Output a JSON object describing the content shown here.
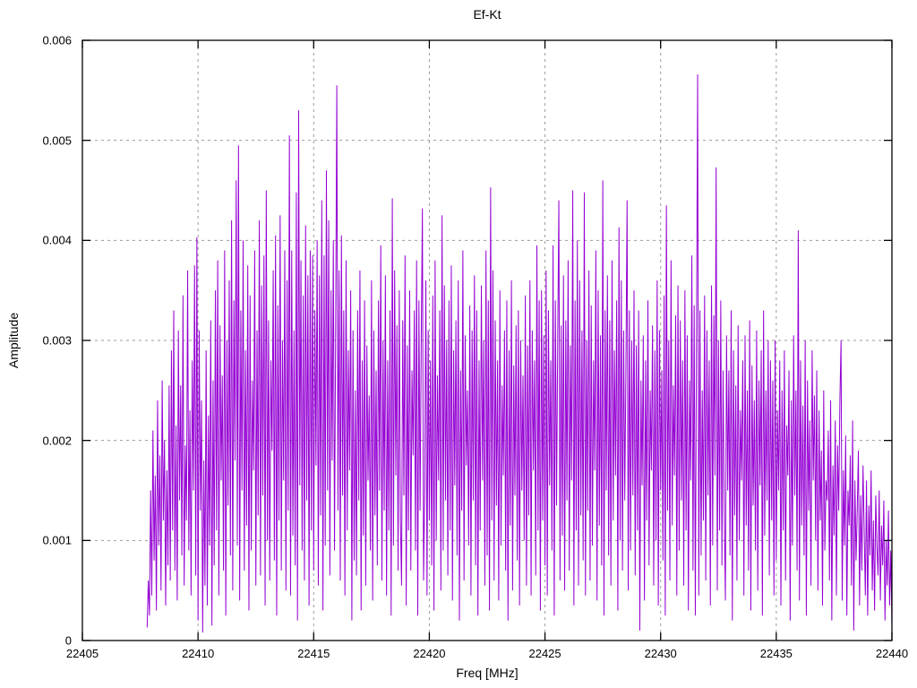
{
  "chart": {
    "title": "Ef-Kt",
    "xlabel": "Freq [MHz]",
    "ylabel": "Amplitude"
  },
  "chart_data": {
    "type": "line",
    "title": "Ef-Kt",
    "xlabel": "Freq [MHz]",
    "ylabel": "Amplitude",
    "xlim": [
      22405,
      22440
    ],
    "ylim": [
      0,
      0.006
    ],
    "xticks": [
      "22405",
      "22410",
      "22415",
      "22420",
      "22425",
      "22430",
      "22435",
      "22440"
    ],
    "xtick_values": [
      22405,
      22410,
      22415,
      22420,
      22425,
      22430,
      22435,
      22440
    ],
    "yticks": [
      "0",
      "0.001",
      "0.002",
      "0.003",
      "0.004",
      "0.005",
      "0.006"
    ],
    "ytick_values": [
      0,
      0.001,
      0.002,
      0.003,
      0.004,
      0.005,
      0.006
    ],
    "grid": true,
    "legend": false,
    "line_color": "#9400d3",
    "grid_color": "#9b9b9b",
    "axis_color": "#000000",
    "x_start": 22407.8,
    "x_step": 0.05,
    "amplitude_scale": 1e-05,
    "amplitudes": [
      13,
      60,
      25,
      150,
      45,
      210,
      80,
      165,
      30,
      240,
      95,
      185,
      50,
      260,
      120,
      200,
      35,
      170,
      75,
      255,
      60,
      290,
      110,
      330,
      70,
      215,
      40,
      310,
      140,
      255,
      85,
      345,
      55,
      195,
      120,
      370,
      90,
      230,
      45,
      280,
      150,
      375,
      65,
      403,
      20,
      310,
      130,
      240,
      8,
      180,
      55,
      290,
      35,
      225,
      95,
      320,
      15,
      260,
      75,
      350,
      110,
      380,
      45,
      315,
      160,
      265,
      70,
      390,
      25,
      300,
      135,
      360,
      85,
      420,
      50,
      340,
      180,
      460,
      95,
      495,
      40,
      330,
      150,
      400,
      70,
      290,
      115,
      375,
      30,
      345,
      90,
      260,
      170,
      390,
      55,
      310,
      125,
      420,
      65,
      355,
      145,
      385,
      35,
      450,
      100,
      320,
      60,
      280,
      190,
      370,
      80,
      405,
      25,
      335,
      120,
      425,
      70,
      300,
      160,
      390,
      50,
      360,
      130,
      505,
      45,
      390,
      105,
      310,
      75,
      448,
      20,
      530,
      155,
      380,
      90,
      345,
      60,
      415,
      140,
      365,
      35,
      390,
      110,
      385,
      70,
      330,
      175,
      400,
      55,
      365,
      125,
      440,
      30,
      385,
      95,
      470,
      150,
      420,
      65,
      350,
      180,
      400,
      90,
      315,
      555,
      130,
      370,
      60,
      405,
      145,
      330,
      45,
      380,
      110,
      290,
      170,
      350,
      20,
      310,
      80,
      250,
      65,
      330,
      140,
      370,
      30,
      280,
      105,
      340,
      55,
      295,
      160,
      245,
      90,
      360,
      40,
      310,
      125,
      270,
      75,
      340,
      150,
      395,
      60,
      300,
      130,
      365,
      45,
      280,
      110,
      330,
      25,
      442,
      95,
      370,
      165,
      315,
      70,
      350,
      120,
      55,
      320,
      145,
      385,
      35,
      295,
      110,
      350,
      70,
      270,
      185,
      330,
      90,
      380,
      25,
      340,
      130,
      300,
      432,
      60,
      150,
      360,
      45,
      310,
      120,
      280,
      75,
      345,
      30,
      380,
      100,
      265,
      160,
      330,
      50,
      425,
      90,
      355,
      140,
      300,
      65,
      340,
      110,
      375,
      40,
      290,
      155,
      320,
      85,
      360,
      20,
      270,
      130,
      390,
      60,
      305,
      175,
      250,
      95,
      335,
      45,
      310,
      140,
      365,
      75,
      330,
      25,
      280,
      110,
      355,
      160,
      300,
      55,
      390,
      85,
      340,
      30,
      453,
      120,
      370,
      60,
      320,
      135,
      280,
      40,
      350,
      95,
      255,
      165,
      310,
      70,
      340,
      20,
      290,
      115,
      360,
      50,
      275,
      145,
      315,
      80,
      330,
      35,
      300,
      150,
      265,
      100,
      345,
      55,
      295,
      125,
      360,
      45,
      310,
      170,
      280,
      65,
      395,
      110,
      340,
      30,
      350,
      120,
      305,
      75,
      370,
      45,
      330,
      155,
      280,
      90,
      395,
      25,
      340,
      135,
      300,
      440,
      60,
      315,
      105,
      365,
      50,
      320,
      140,
      380,
      70,
      295,
      160,
      450,
      35,
      340,
      110,
      400,
      55,
      360,
      125,
      310,
      80,
      448,
      45,
      300,
      130,
      370,
      60,
      335,
      95,
      280,
      170,
      390,
      40,
      350,
      115,
      305,
      75,
      460,
      25,
      330,
      150,
      365,
      85,
      320,
      55,
      380,
      120,
      290,
      165,
      340,
      30,
      413,
      100,
      360,
      70,
      310,
      140,
      275,
      440,
      50,
      330,
      90,
      300,
      145,
      350,
      65,
      295,
      110,
      330,
      10,
      260,
      155,
      305,
      40,
      280,
      120,
      340,
      75,
      250,
      170,
      315,
      55,
      290,
      100,
      360,
      35,
      310,
      150,
      270,
      80,
      345,
      25,
      435,
      130,
      300,
      60,
      380,
      115,
      255,
      165,
      325,
      45,
      355,
      90,
      320,
      140,
      280,
      55,
      350,
      110,
      305,
      30,
      260,
      160,
      385,
      70,
      335,
      25,
      300,
      566,
      45,
      330,
      85,
      250,
      120,
      345,
      60,
      310,
      145,
      280,
      35,
      355,
      95,
      325,
      165,
      473,
      50,
      300,
      110,
      340,
      75,
      270,
      130,
      40,
      305,
      150,
      270,
      85,
      330,
      20,
      290,
      125,
      255,
      60,
      315,
      100,
      230,
      160,
      280,
      45,
      305,
      115,
      250,
      70,
      320,
      30,
      275,
      135,
      240,
      90,
      310,
      50,
      260,
      155,
      290,
      25,
      330,
      105,
      250,
      140,
      300,
      65,
      280,
      120,
      260,
      45,
      300,
      80,
      230,
      150,
      280,
      35,
      250,
      110,
      290,
      60,
      215,
      165,
      270,
      20,
      240,
      95,
      305,
      145,
      250,
      70,
      410,
      40,
      280,
      115,
      235,
      85,
      300,
      25,
      260,
      130,
      220,
      55,
      290,
      160,
      245,
      100,
      270,
      50,
      230,
      120,
      190,
      35,
      250,
      90,
      160,
      140,
      210,
      60,
      240,
      20,
      175,
      105,
      220,
      45,
      195,
      130,
      240,
      300,
      40,
      170,
      95,
      205,
      25,
      150,
      115,
      185,
      55,
      220,
      10,
      160,
      80,
      130,
      190,
      35,
      145,
      70,
      175,
      110,
      45,
      160,
      25,
      135,
      85,
      170,
      50,
      120,
      30,
      145,
      95,
      65,
      150,
      40,
      115,
      75,
      140,
      20,
      100,
      55,
      130,
      35,
      90,
      13
    ]
  }
}
